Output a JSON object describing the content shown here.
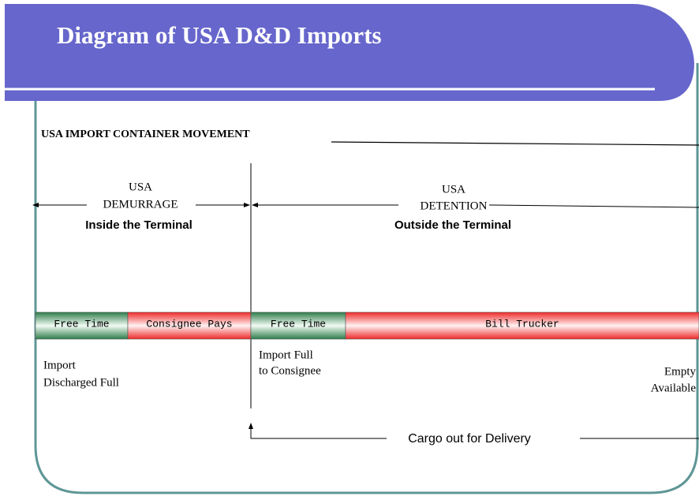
{
  "header": {
    "title": "Diagram of USA D&D Imports"
  },
  "section": {
    "heading": "USA IMPORT CONTAINER MOVEMENT"
  },
  "zones": [
    {
      "label": [
        "USA",
        "DEMURRAGE"
      ],
      "location": "Inside the Terminal"
    },
    {
      "label": [
        "USA",
        "DETENTION"
      ],
      "location": "Outside the Terminal"
    }
  ],
  "timeline": {
    "segments": [
      {
        "label": "Free Time",
        "color": "green"
      },
      {
        "label": "Consignee Pays",
        "color": "red"
      },
      {
        "label": "Free Time",
        "color": "green"
      },
      {
        "label": "Bill Trucker",
        "color": "red"
      }
    ]
  },
  "events": [
    {
      "lines": [
        "Import",
        "Discharged Full"
      ]
    },
    {
      "lines": [
        "Import Full",
        "to Consignee"
      ]
    },
    {
      "lines": [
        "Empty",
        "Available"
      ]
    }
  ],
  "flow": {
    "label": "Cargo out for Delivery"
  }
}
